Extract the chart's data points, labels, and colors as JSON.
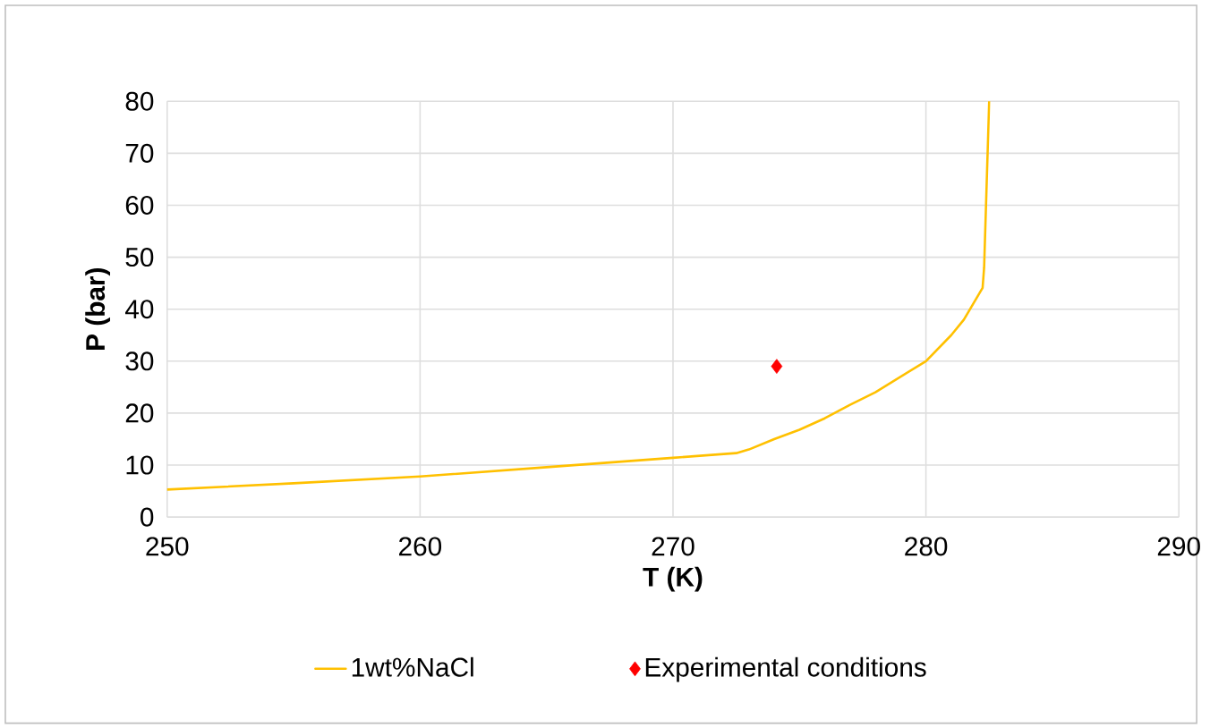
{
  "chart_data": {
    "type": "line",
    "xlabel": "T (K)",
    "ylabel": "P (bar)",
    "xlim": [
      250,
      290
    ],
    "ylim": [
      0,
      80
    ],
    "xticks": [
      250,
      260,
      270,
      280,
      290
    ],
    "yticks": [
      0,
      10,
      20,
      30,
      40,
      50,
      60,
      70,
      80
    ],
    "grid": true,
    "legend": "bottom",
    "series": [
      {
        "name": "1wt%NaCl",
        "color": "#ffc000",
        "marker": "none",
        "x": [
          250,
          255,
          260,
          265,
          270,
          272.5,
          273,
          274,
          275,
          276,
          277,
          278,
          279,
          280,
          281,
          281.5,
          282.24,
          282.3,
          282.5
        ],
        "values": [
          5.3,
          6.5,
          7.8,
          9.6,
          11.4,
          12.3,
          13,
          15,
          16.8,
          19,
          21.6,
          24,
          27,
          30,
          35,
          38,
          44.1,
          48,
          80
        ]
      },
      {
        "name": "Experimental conditions",
        "type": "scatter",
        "color": "#ff0000",
        "marker": "diamond",
        "x": [
          274.1
        ],
        "values": [
          29.0
        ]
      }
    ]
  }
}
